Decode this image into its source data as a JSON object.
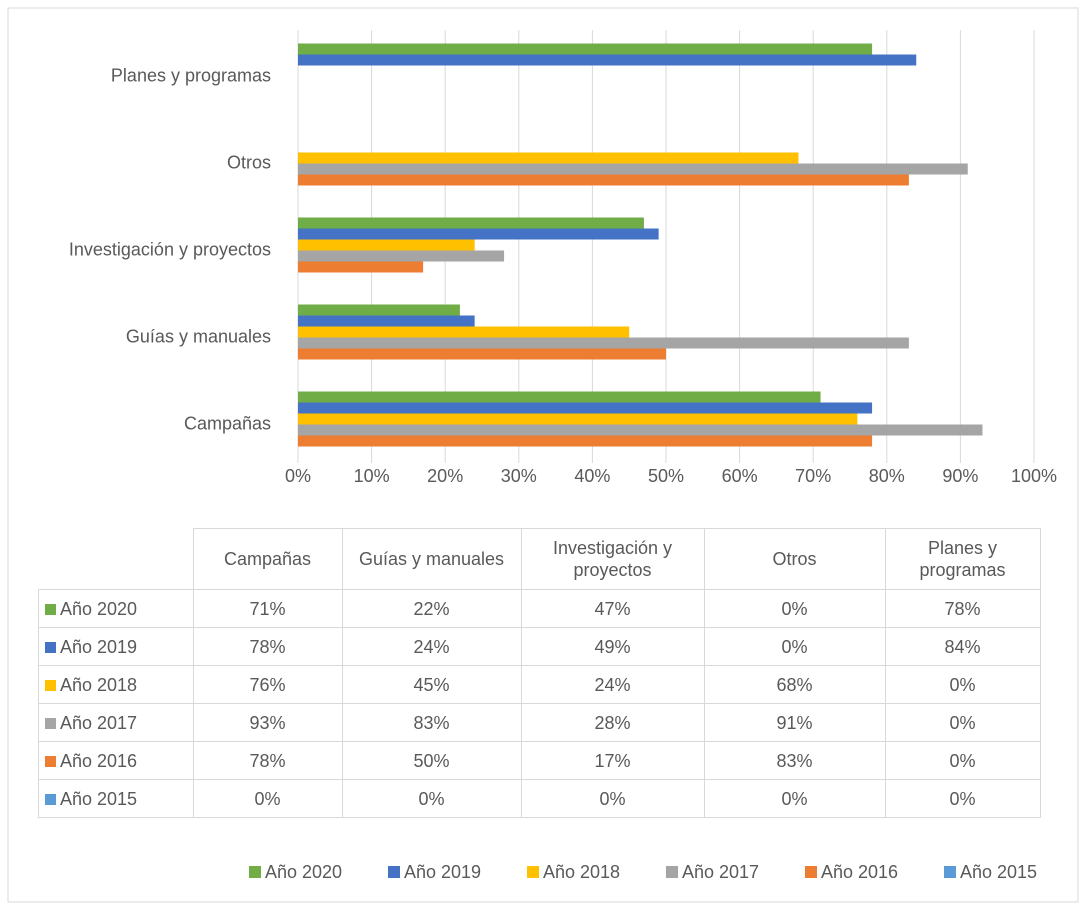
{
  "chart_data": {
    "type": "bar",
    "orientation": "horizontal",
    "categories": [
      "Campañas",
      "Guías y manuales",
      "Investigación y proyectos",
      "Otros",
      "Planes y programas"
    ],
    "series": [
      {
        "name": "Año 2020",
        "color": "#70ad47",
        "values": [
          71,
          22,
          47,
          0,
          78
        ],
        "value_labels": [
          "71%",
          "22%",
          "47%",
          "0%",
          "78%"
        ]
      },
      {
        "name": "Año 2019",
        "color": "#4472c4",
        "values": [
          78,
          24,
          49,
          0,
          84
        ],
        "value_labels": [
          "78%",
          "24%",
          "49%",
          "0%",
          "84%"
        ]
      },
      {
        "name": "Año 2018",
        "color": "#ffc000",
        "values": [
          76,
          45,
          24,
          68,
          0
        ],
        "value_labels": [
          "76%",
          "45%",
          "24%",
          "68%",
          "0%"
        ]
      },
      {
        "name": "Año 2017",
        "color": "#a5a5a5",
        "values": [
          93,
          83,
          28,
          91,
          0
        ],
        "value_labels": [
          "93%",
          "83%",
          "28%",
          "91%",
          "0%"
        ]
      },
      {
        "name": "Año 2016",
        "color": "#ed7d31",
        "values": [
          78,
          50,
          17,
          83,
          0
        ],
        "value_labels": [
          "78%",
          "50%",
          "17%",
          "83%",
          "0%"
        ]
      },
      {
        "name": "Año 2015",
        "color": "#5b9bd5",
        "values": [
          0,
          0,
          0,
          0,
          0
        ],
        "value_labels": [
          "0%",
          "0%",
          "0%",
          "0%",
          "0%"
        ]
      }
    ],
    "xlim": [
      0,
      100
    ],
    "xticks": [
      {
        "value": 0,
        "label": "0%"
      },
      {
        "value": 10,
        "label": "10%"
      },
      {
        "value": 20,
        "label": "20%"
      },
      {
        "value": 30,
        "label": "30%"
      },
      {
        "value": 40,
        "label": "40%"
      },
      {
        "value": 50,
        "label": "50%"
      },
      {
        "value": 60,
        "label": "60%"
      },
      {
        "value": 70,
        "label": "70%"
      },
      {
        "value": 80,
        "label": "80%"
      },
      {
        "value": 90,
        "label": "90%"
      },
      {
        "value": 100,
        "label": "100%"
      }
    ],
    "grid": true,
    "legend": "bottom",
    "data_table": true
  }
}
